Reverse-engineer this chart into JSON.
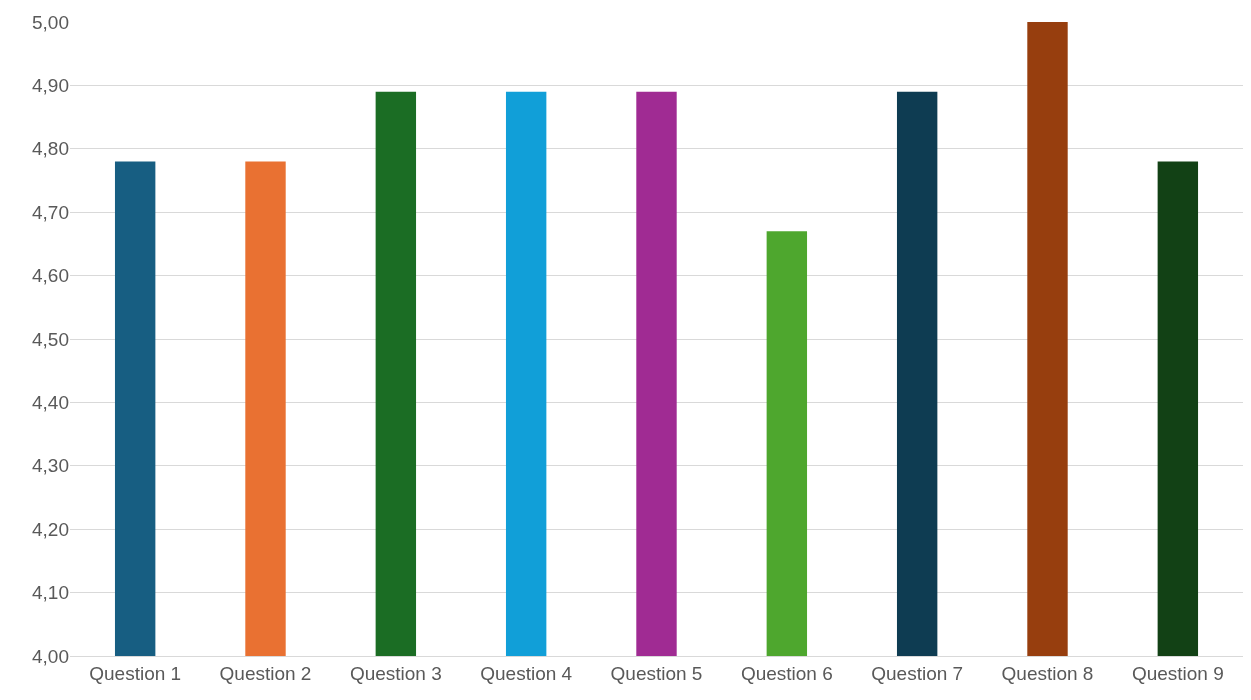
{
  "chart_data": {
    "type": "bar",
    "categories": [
      "Question 1",
      "Question 2",
      "Question 3",
      "Question 4",
      "Question 5",
      "Question 6",
      "Question 7",
      "Question 8",
      "Question 9"
    ],
    "values": [
      4.78,
      4.78,
      4.89,
      4.89,
      4.89,
      4.67,
      4.89,
      5.0,
      4.78
    ],
    "colors": [
      "#175e82",
      "#e97132",
      "#1b6d24",
      "#119fd8",
      "#a02b93",
      "#4ea72e",
      "#0e3c52",
      "#973e0e",
      "#124115"
    ],
    "ylim": [
      4,
      5
    ],
    "yticks": [
      {
        "value": 4,
        "label": "4,00"
      },
      {
        "value": 4.1,
        "label": "4,10"
      },
      {
        "value": 4.2,
        "label": "4,20"
      },
      {
        "value": 4.3,
        "label": "4,30"
      },
      {
        "value": 4.4,
        "label": "4,40"
      },
      {
        "value": 4.5,
        "label": "4,50"
      },
      {
        "value": 4.6,
        "label": "4,60"
      },
      {
        "value": 4.7,
        "label": "4,70"
      },
      {
        "value": 4.8,
        "label": "4,80"
      },
      {
        "value": 4.9,
        "label": "4,90"
      },
      {
        "value": 5,
        "label": "5,00"
      }
    ],
    "grid": "y"
  }
}
